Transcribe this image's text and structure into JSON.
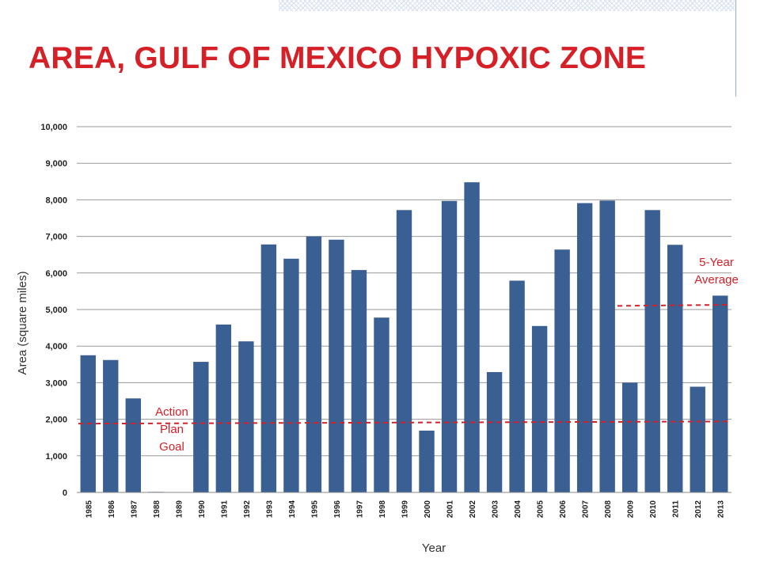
{
  "title": "AREA, GULF OF MEXICO HYPOXIC ZONE",
  "colors": {
    "title": "#d62027",
    "bar": "#3a5f93",
    "goal_line": "#d62027",
    "grid": "#999999"
  },
  "chart_data": {
    "type": "bar",
    "title": "",
    "xlabel": "Year",
    "ylabel": "Area (square miles)",
    "ylim": [
      0,
      10000
    ],
    "yticks": [
      0,
      1000,
      2000,
      3000,
      4000,
      5000,
      6000,
      7000,
      8000,
      9000,
      10000
    ],
    "ytick_labels": [
      "0",
      "1,000",
      "2,000",
      "3,000",
      "4,000",
      "5,000",
      "6,000",
      "7,000",
      "8,000",
      "9,000",
      "10,000"
    ],
    "grid": true,
    "categories": [
      "1985",
      "1986",
      "1987",
      "1988",
      "1989",
      "1990",
      "1991",
      "1992",
      "1993",
      "1994",
      "1995",
      "1996",
      "1997",
      "1998",
      "1999",
      "2000",
      "2001",
      "2002",
      "2003",
      "2004",
      "2005",
      "2006",
      "2007",
      "2008",
      "2009",
      "2010",
      "2011",
      "2012",
      "2013"
    ],
    "values": [
      3750,
      3620,
      2570,
      15,
      0,
      3570,
      4590,
      4130,
      6780,
      6390,
      7000,
      6910,
      6080,
      4780,
      7720,
      1690,
      7970,
      8480,
      3290,
      5790,
      4550,
      6640,
      7910,
      7980,
      3000,
      7720,
      6770,
      2890,
      5380
    ],
    "reference_lines": [
      {
        "label": "Action Plan Goal",
        "label_lines": [
          "Action",
          "Plan",
          "Goal"
        ],
        "y_start": 1880,
        "y_end": 1940,
        "x_from": "1985",
        "x_to": "2013",
        "style": "dashed"
      },
      {
        "label": "5-Year Average",
        "label_lines": [
          "5-Year",
          "Average"
        ],
        "y_start": 5100,
        "y_end": 5130,
        "x_from": "2009",
        "x_to": "2013",
        "style": "dashed"
      }
    ]
  }
}
